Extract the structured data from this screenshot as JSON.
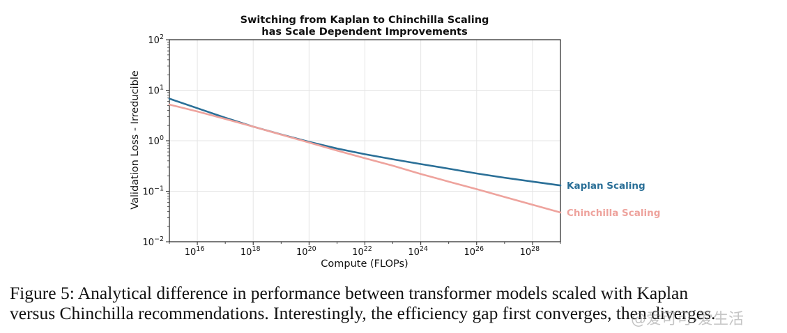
{
  "chart_data": {
    "type": "line",
    "title": [
      "Switching from Kaplan to Chinchilla Scaling",
      "has Scale Dependent Improvements"
    ],
    "xlabel": "Compute (FLOPs)",
    "ylabel": "Validation Loss - Irreducible",
    "x_scale": "log",
    "y_scale": "log",
    "xlim": [
      1000000000000000.0,
      1e+29
    ],
    "ylim": [
      0.01,
      100
    ],
    "x_ticks": [
      {
        "value": 1e+16,
        "base": "10",
        "exp": "16"
      },
      {
        "value": 1e+18,
        "base": "10",
        "exp": "18"
      },
      {
        "value": 1e+20,
        "base": "10",
        "exp": "20"
      },
      {
        "value": 1e+22,
        "base": "10",
        "exp": "22"
      },
      {
        "value": 1e+24,
        "base": "10",
        "exp": "24"
      },
      {
        "value": 1e+26,
        "base": "10",
        "exp": "26"
      },
      {
        "value": 1e+28,
        "base": "10",
        "exp": "28"
      }
    ],
    "y_ticks": [
      {
        "value": 100,
        "base": "10",
        "exp": "2"
      },
      {
        "value": 10,
        "base": "10",
        "exp": "1"
      },
      {
        "value": 1,
        "base": "10",
        "exp": "0"
      },
      {
        "value": 0.1,
        "base": "10",
        "exp": "−1"
      },
      {
        "value": 0.01,
        "base": "10",
        "exp": "−2"
      }
    ],
    "grid": true,
    "series": [
      {
        "name": "Kaplan Scaling",
        "color": "#2a6f97",
        "x": [
          1000000000000000.0,
          1e+16,
          1e+17,
          1e+18,
          1e+19,
          1e+20,
          1e+21,
          1e+22,
          1e+23,
          1e+24,
          1e+25,
          1e+26,
          1e+27,
          1e+28,
          1e+29
        ],
        "y": [
          6.8,
          4.4,
          2.85,
          1.9,
          1.33,
          0.95,
          0.7,
          0.54,
          0.43,
          0.345,
          0.28,
          0.225,
          0.185,
          0.155,
          0.13
        ]
      },
      {
        "name": "Chinchilla Scaling",
        "color": "#eea39d",
        "x": [
          1000000000000000.0,
          1e+16,
          1e+17,
          1e+18,
          1e+19,
          1e+20,
          1e+21,
          1e+22,
          1e+23,
          1e+24,
          1e+25,
          1e+26,
          1e+27,
          1e+28,
          1e+29
        ],
        "y": [
          5.2,
          3.8,
          2.7,
          1.9,
          1.32,
          0.92,
          0.64,
          0.45,
          0.32,
          0.22,
          0.155,
          0.11,
          0.077,
          0.054,
          0.038
        ]
      }
    ]
  },
  "caption": {
    "line1": "Figure 5:  Analytical difference in performance between transformer models scaled with Kaplan",
    "line2": "versus Chinchilla recommendations. Interestingly, the efficiency gap first converges, then diverges."
  },
  "watermark": "@爱可可-爱生活"
}
